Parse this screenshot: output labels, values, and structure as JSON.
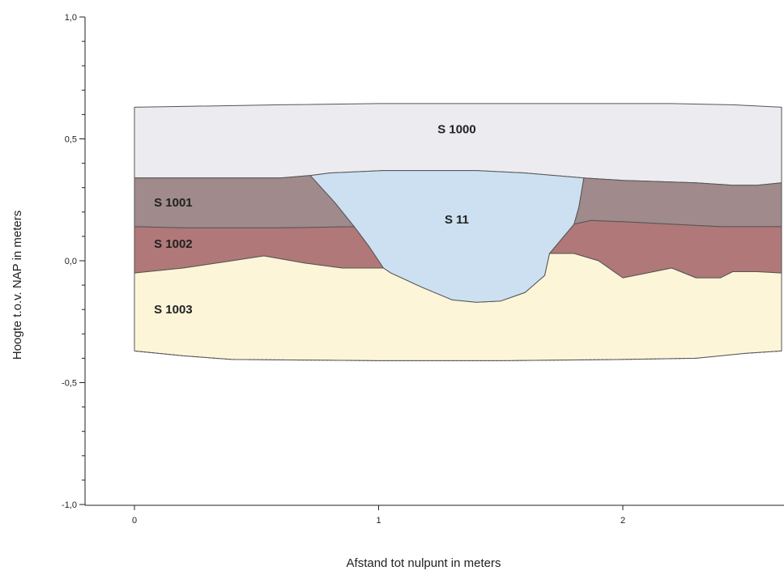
{
  "chart_data": {
    "type": "area",
    "xlabel": "Afstand tot nulpunt in meters",
    "ylabel": "Hoogte t.o.v. NAP in meters",
    "xlim": [
      -0.2,
      2.65
    ],
    "ylim": [
      -1.0,
      1.0
    ],
    "x_ticks": [
      {
        "value": 0,
        "label": "0"
      },
      {
        "value": 1,
        "label": "1"
      },
      {
        "value": 2,
        "label": "2"
      }
    ],
    "y_ticks": [
      {
        "value": 1.0,
        "label": "1,0"
      },
      {
        "value": 0.5,
        "label": "0,5"
      },
      {
        "value": 0.0,
        "label": "0,0"
      },
      {
        "value": -0.5,
        "label": "-0,5"
      },
      {
        "value": -1.0,
        "label": "-1,0"
      }
    ],
    "y_minor_step": 0.1,
    "layers": [
      {
        "name": "S 1000",
        "color": "#ececf0",
        "label_pos": [
          1.32,
          0.54
        ],
        "polygon": [
          [
            0,
            0.63
          ],
          [
            0.6,
            0.64
          ],
          [
            1.0,
            0.645
          ],
          [
            1.6,
            0.645
          ],
          [
            2.2,
            0.645
          ],
          [
            2.45,
            0.64
          ],
          [
            2.65,
            0.63
          ],
          [
            2.65,
            0.32
          ],
          [
            2.55,
            0.31
          ],
          [
            2.45,
            0.31
          ],
          [
            2.3,
            0.32
          ],
          [
            2.0,
            0.33
          ],
          [
            1.84,
            0.34
          ],
          [
            1.6,
            0.36
          ],
          [
            1.4,
            0.37
          ],
          [
            1.2,
            0.37
          ],
          [
            1.02,
            0.37
          ],
          [
            0.8,
            0.36
          ],
          [
            0.72,
            0.35
          ],
          [
            0.6,
            0.34
          ],
          [
            0.4,
            0.34
          ],
          [
            0.2,
            0.34
          ],
          [
            0,
            0.34
          ]
        ]
      },
      {
        "name": "S 1001",
        "color": "#a08a8b",
        "label_pos": [
          0.08,
          0.24
        ],
        "polygon": [
          [
            0,
            0.34
          ],
          [
            0.2,
            0.34
          ],
          [
            0.4,
            0.34
          ],
          [
            0.6,
            0.34
          ],
          [
            0.72,
            0.35
          ],
          [
            0.82,
            0.24
          ],
          [
            0.9,
            0.14
          ],
          [
            0.6,
            0.135
          ],
          [
            0.4,
            0.135
          ],
          [
            0.2,
            0.135
          ],
          [
            0,
            0.14
          ]
        ]
      },
      {
        "name": "S 1001",
        "color": "#a08a8b",
        "label_pos": null,
        "polygon": [
          [
            1.84,
            0.34
          ],
          [
            2.0,
            0.33
          ],
          [
            2.3,
            0.32
          ],
          [
            2.45,
            0.31
          ],
          [
            2.55,
            0.31
          ],
          [
            2.65,
            0.32
          ],
          [
            2.65,
            0.14
          ],
          [
            2.4,
            0.14
          ],
          [
            2.2,
            0.15
          ],
          [
            2.0,
            0.16
          ],
          [
            1.87,
            0.165
          ],
          [
            1.8,
            0.15
          ],
          [
            1.82,
            0.22
          ]
        ]
      },
      {
        "name": "S 1002",
        "color": "#b07878",
        "label_pos": [
          0.08,
          0.07
        ],
        "polygon": [
          [
            0,
            0.14
          ],
          [
            0.2,
            0.135
          ],
          [
            0.4,
            0.135
          ],
          [
            0.6,
            0.135
          ],
          [
            0.9,
            0.14
          ],
          [
            0.96,
            0.06
          ],
          [
            1.02,
            -0.03
          ],
          [
            0.85,
            -0.03
          ],
          [
            0.7,
            -0.01
          ],
          [
            0.53,
            0.02
          ],
          [
            0.4,
            0.0
          ],
          [
            0.2,
            -0.03
          ],
          [
            0,
            -0.05
          ]
        ]
      },
      {
        "name": "S 1002",
        "color": "#b07878",
        "label_pos": null,
        "polygon": [
          [
            1.8,
            0.15
          ],
          [
            1.87,
            0.165
          ],
          [
            2.0,
            0.16
          ],
          [
            2.2,
            0.15
          ],
          [
            2.4,
            0.14
          ],
          [
            2.65,
            0.14
          ],
          [
            2.65,
            -0.05
          ],
          [
            2.55,
            -0.045
          ],
          [
            2.45,
            -0.045
          ],
          [
            2.4,
            -0.07
          ],
          [
            2.3,
            -0.07
          ],
          [
            2.2,
            -0.03
          ],
          [
            2.1,
            -0.05
          ],
          [
            2.0,
            -0.07
          ],
          [
            1.9,
            0.0
          ],
          [
            1.8,
            0.03
          ],
          [
            1.7,
            0.03
          ]
        ]
      },
      {
        "name": "S 1003",
        "color": "#fcf5d8",
        "label_pos": [
          0.08,
          -0.2
        ],
        "polygon": [
          [
            0,
            -0.05
          ],
          [
            0.2,
            -0.03
          ],
          [
            0.4,
            0.0
          ],
          [
            0.53,
            0.02
          ],
          [
            0.7,
            -0.01
          ],
          [
            0.85,
            -0.03
          ],
          [
            1.02,
            -0.03
          ],
          [
            1.05,
            -0.05
          ],
          [
            1.18,
            -0.11
          ],
          [
            1.3,
            -0.16
          ],
          [
            1.4,
            -0.17
          ],
          [
            1.5,
            -0.165
          ],
          [
            1.6,
            -0.13
          ],
          [
            1.68,
            -0.06
          ],
          [
            1.7,
            0.03
          ],
          [
            1.8,
            0.03
          ],
          [
            1.9,
            0.0
          ],
          [
            2.0,
            -0.07
          ],
          [
            2.1,
            -0.05
          ],
          [
            2.2,
            -0.03
          ],
          [
            2.3,
            -0.07
          ],
          [
            2.4,
            -0.07
          ],
          [
            2.45,
            -0.045
          ],
          [
            2.55,
            -0.045
          ],
          [
            2.65,
            -0.05
          ],
          [
            2.65,
            -0.37
          ],
          [
            2.5,
            -0.38
          ],
          [
            2.3,
            -0.4
          ],
          [
            2.0,
            -0.405
          ],
          [
            1.5,
            -0.41
          ],
          [
            1.0,
            -0.41
          ],
          [
            0.4,
            -0.405
          ],
          [
            0.2,
            -0.39
          ],
          [
            0,
            -0.37
          ]
        ]
      },
      {
        "name": "S 11",
        "color": "#cce0f1",
        "label_pos": [
          1.32,
          0.17
        ],
        "polygon": [
          [
            0.72,
            0.35
          ],
          [
            0.8,
            0.36
          ],
          [
            1.02,
            0.37
          ],
          [
            1.2,
            0.37
          ],
          [
            1.4,
            0.37
          ],
          [
            1.6,
            0.36
          ],
          [
            1.84,
            0.34
          ],
          [
            1.82,
            0.22
          ],
          [
            1.8,
            0.15
          ],
          [
            1.7,
            0.03
          ],
          [
            1.68,
            -0.06
          ],
          [
            1.6,
            -0.13
          ],
          [
            1.5,
            -0.165
          ],
          [
            1.4,
            -0.17
          ],
          [
            1.3,
            -0.16
          ],
          [
            1.18,
            -0.11
          ],
          [
            1.05,
            -0.05
          ],
          [
            1.02,
            -0.03
          ],
          [
            0.96,
            0.06
          ],
          [
            0.9,
            0.14
          ],
          [
            0.82,
            0.24
          ]
        ]
      }
    ],
    "outline_left": [
      [
        0,
        0.63
      ],
      [
        0,
        -0.37
      ]
    ]
  },
  "style": {
    "stroke": "#555555",
    "axis": "#222222"
  }
}
